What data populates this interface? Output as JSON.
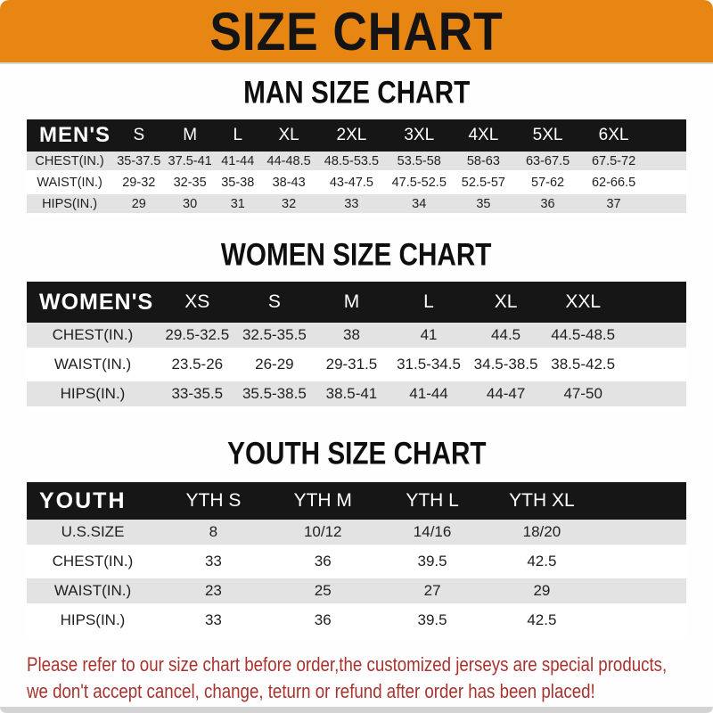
{
  "banner": {
    "title": "SIZE CHART"
  },
  "sections": [
    {
      "heading": "MAN SIZE CHART",
      "label": "MEN'S",
      "columns": [
        "S",
        "M",
        "L",
        "XL",
        "2XL",
        "3XL",
        "4XL",
        "5XL",
        "6XL"
      ],
      "rows": [
        {
          "label": "CHEST(IN.)",
          "values": [
            "35-37.5",
            "37.5-41",
            "41-44",
            "44-48.5",
            "48.5-53.5",
            "53.5-58",
            "58-63",
            "63-67.5",
            "67.5-72"
          ]
        },
        {
          "label": "WAIST(IN.)",
          "values": [
            "29-32",
            "32-35",
            "35-38",
            "38-43",
            "43-47.5",
            "47.5-52.5",
            "52.5-57",
            "57-62",
            "62-66.5"
          ]
        },
        {
          "label": "HIPS(IN.)",
          "values": [
            "29",
            "30",
            "31",
            "32",
            "33",
            "34",
            "35",
            "36",
            "37"
          ]
        }
      ]
    },
    {
      "heading": "WOMEN SIZE CHART",
      "label": "WOMEN'S",
      "columns": [
        "XS",
        "S",
        "M",
        "L",
        "XL",
        "XXL"
      ],
      "rows": [
        {
          "label": "CHEST(IN.)",
          "values": [
            "29.5-32.5",
            "32.5-35.5",
            "38",
            "41",
            "44.5",
            "44.5-48.5"
          ]
        },
        {
          "label": "WAIST(IN.)",
          "values": [
            "23.5-26",
            "26-29",
            "29-31.5",
            "31.5-34.5",
            "34.5-38.5",
            "38.5-42.5"
          ]
        },
        {
          "label": "HIPS(IN.)",
          "values": [
            "33-35.5",
            "35.5-38.5",
            "38.5-41",
            "41-44",
            "44-47",
            "47-50"
          ]
        }
      ]
    },
    {
      "heading": "YOUTH SIZE CHART",
      "label": "YOUTH",
      "columns": [
        "YTH S",
        "YTH M",
        "YTH L",
        "YTH XL"
      ],
      "rows": [
        {
          "label": "U.S.SIZE",
          "values": [
            "8",
            "10/12",
            "14/16",
            "18/20"
          ]
        },
        {
          "label": "CHEST(IN.)",
          "values": [
            "33",
            "36",
            "39.5",
            "42.5"
          ]
        },
        {
          "label": "WAIST(IN.)",
          "values": [
            "23",
            "25",
            "27",
            "29"
          ]
        },
        {
          "label": "HIPS(IN.)",
          "values": [
            "33",
            "36",
            "39.5",
            "42.5"
          ]
        }
      ]
    }
  ],
  "disclaimer": {
    "line1": "Please refer to our size chart before order,the customized jerseys are special products,",
    "line2": "we don't accept cancel, change, teturn or refund after order has been placed!"
  },
  "colors": {
    "banner_bg": "#E88614",
    "header_bg": "#161616",
    "row_gray": "#E3E3E3",
    "text_dark": "#1F1F1F",
    "disclaimer_red": "#A8332E",
    "strip_gray": "#D4D4D4"
  }
}
